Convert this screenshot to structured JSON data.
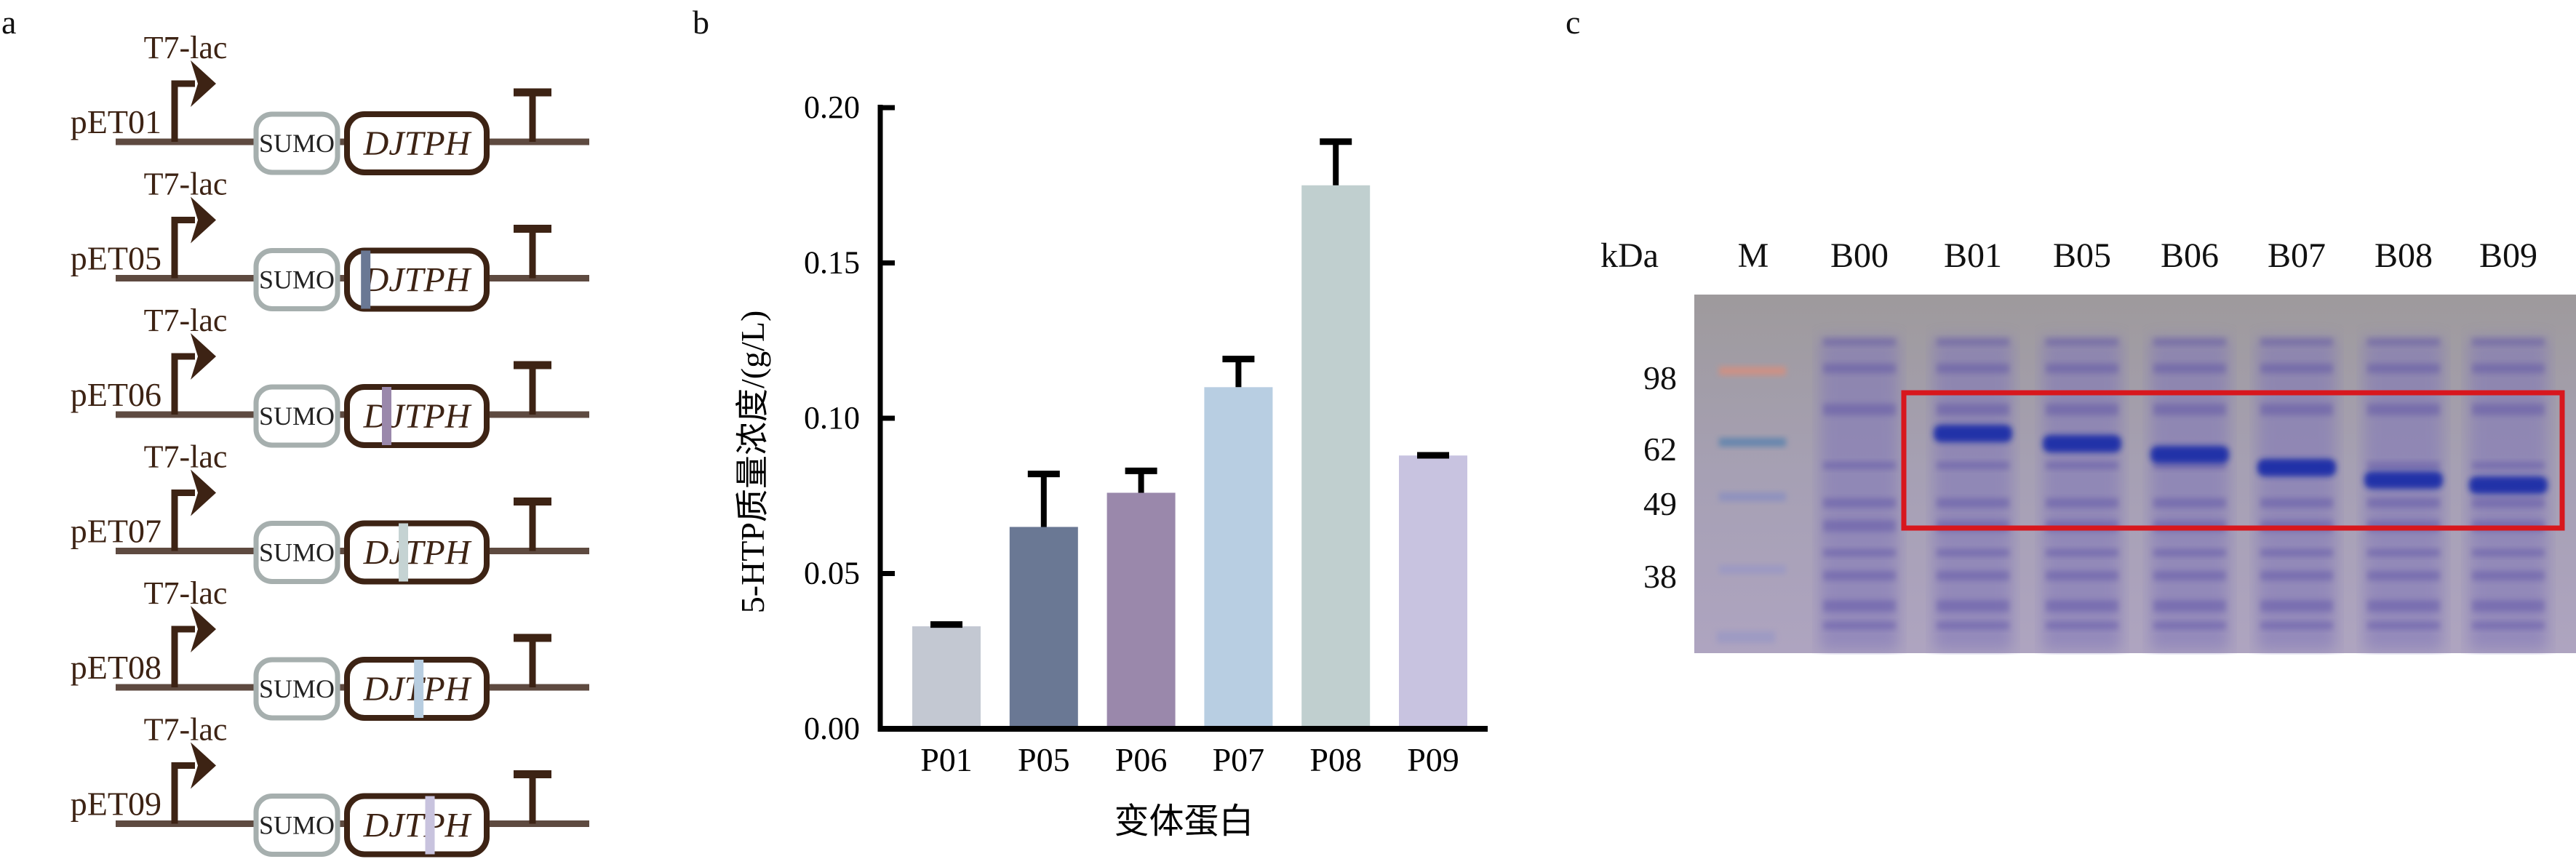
{
  "panels": {
    "a": {
      "label": "a",
      "promoter_label": "T7-lac",
      "tag_label": "SUMO",
      "gene_label": "DJTPH",
      "colors": {
        "text": "#3d2314",
        "backbone": "#5e4a40",
        "promoter": "#3d2314",
        "sumo_border": "#a6afae",
        "gene_border": "#3d2314",
        "terminator": "#3d2314"
      },
      "constructs": [
        {
          "name": "pET01",
          "mutation_color": null,
          "mutation_position": null
        },
        {
          "name": "pET05",
          "mutation_color": "#6a7894",
          "mutation_position": 0.1
        },
        {
          "name": "pET06",
          "mutation_color": "#9a88ab",
          "mutation_position": 0.25
        },
        {
          "name": "pET07",
          "mutation_color": "#c5d3d3",
          "mutation_position": 0.37
        },
        {
          "name": "pET08",
          "mutation_color": "#b7cde0",
          "mutation_position": 0.48
        },
        {
          "name": "pET09",
          "mutation_color": "#c8c3de",
          "mutation_position": 0.56
        }
      ]
    },
    "b": {
      "label": "b"
    },
    "c": {
      "label": "c",
      "unit_label": "kDa",
      "lanes": [
        "M",
        "B00",
        "B01",
        "B05",
        "B06",
        "B07",
        "B08",
        "B09"
      ],
      "markers": [
        {
          "label": "98",
          "kda": 98
        },
        {
          "label": "62",
          "kda": 62
        },
        {
          "label": "49",
          "kda": 49
        },
        {
          "label": "38",
          "kda": 38
        }
      ],
      "highlight_color": "#d8171d",
      "highlight_lanes": [
        "B01",
        "B05",
        "B06",
        "B07",
        "B08",
        "B09"
      ]
    }
  },
  "chart_data": {
    "type": "bar",
    "title": "",
    "xlabel": "变体蛋白",
    "ylabel": "5-HTP质量浓度/(g/L)",
    "categories": [
      "P01",
      "P05",
      "P06",
      "P07",
      "P08",
      "P09"
    ],
    "values": [
      0.033,
      0.065,
      0.076,
      0.11,
      0.175,
      0.088
    ],
    "error_upper": [
      0.0345,
      0.083,
      0.084,
      0.12,
      0.19,
      0.089
    ],
    "colors": [
      "#c3c8d2",
      "#6a7894",
      "#9a88ab",
      "#b8cee2",
      "#c0cfcf",
      "#c8c3e0"
    ],
    "ylim": [
      0,
      0.2
    ],
    "yticks": [
      "0.00",
      "0.05",
      "0.10",
      "0.15",
      "0.20"
    ],
    "ytick_values": [
      0,
      0.05,
      0.1,
      0.15,
      0.2
    ],
    "grid": false,
    "legend": "none"
  }
}
